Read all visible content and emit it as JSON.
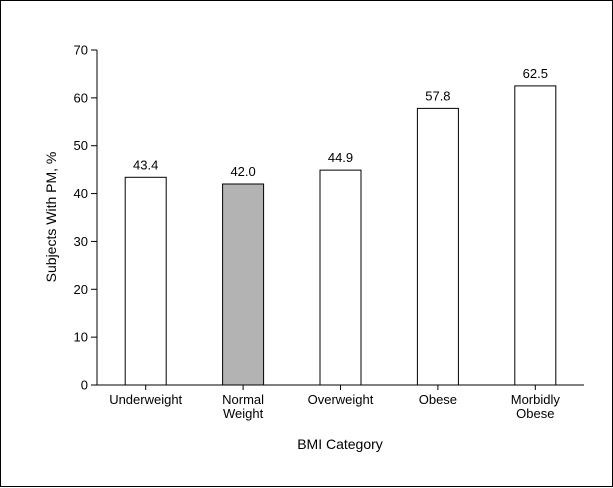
{
  "chart_data": {
    "type": "bar",
    "categories": [
      [
        "Underweight"
      ],
      [
        "Normal",
        "Weight"
      ],
      [
        "Overweight"
      ],
      [
        "Obese"
      ],
      [
        "Morbidly",
        "Obese"
      ]
    ],
    "values": [
      43.4,
      42.0,
      44.9,
      57.8,
      62.5
    ],
    "value_labels": [
      "43.4",
      "42.0",
      "44.9",
      "57.8",
      "62.5"
    ],
    "bar_colors": [
      "#ffffff",
      "#b3b3b3",
      "#ffffff",
      "#ffffff",
      "#ffffff"
    ],
    "xlabel": "BMI Category",
    "ylabel": "Subjects With PM, %",
    "ylim": [
      0,
      70
    ],
    "yticks": [
      0,
      10,
      20,
      30,
      40,
      50,
      60,
      70
    ],
    "grid": false
  }
}
